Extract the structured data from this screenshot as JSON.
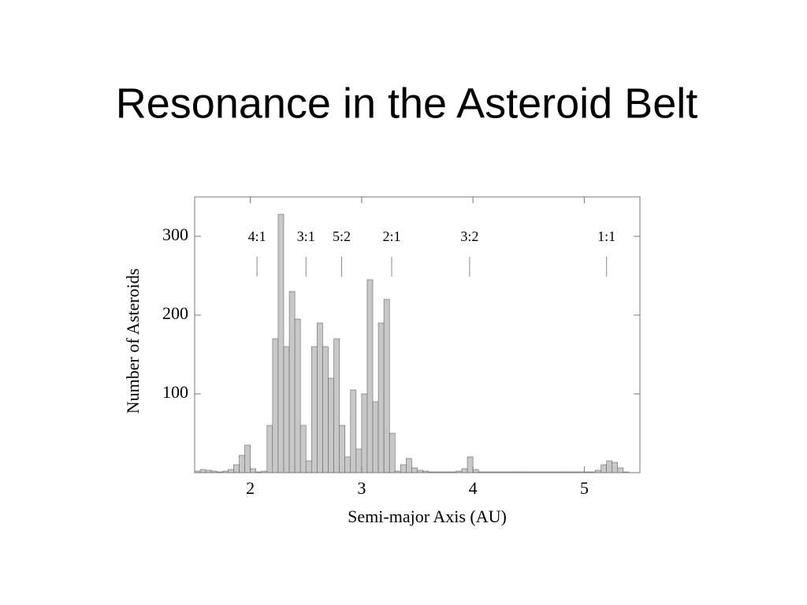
{
  "chart_data": {
    "type": "histogram",
    "title": "Resonance in the Asteroid Belt",
    "x_label": "Semi-major Axis (AU)",
    "y_label": "Number of Asteroids",
    "color": "#c8c8c8",
    "xlim": [
      1.5,
      5.5
    ],
    "xticks": [
      2,
      3,
      4,
      5
    ],
    "ylim": [
      0,
      350
    ],
    "yticks": [
      100,
      200,
      300
    ],
    "bins": [
      1.5,
      1.55,
      1.6,
      1.65,
      1.7,
      1.75,
      1.8,
      1.85,
      1.9,
      1.95,
      2.0,
      2.05,
      2.1,
      2.15,
      2.2,
      2.25,
      2.3,
      2.35,
      2.4,
      2.45,
      2.5,
      2.55,
      2.6,
      2.65,
      2.7,
      2.75,
      2.8,
      2.85,
      2.9,
      2.95,
      3.0,
      3.05,
      3.1,
      3.15,
      3.2,
      3.25,
      3.3,
      3.35,
      3.4,
      3.45,
      3.5,
      3.55,
      3.6,
      3.65,
      3.7,
      3.75,
      3.8,
      3.85,
      3.9,
      3.95,
      4.0,
      4.05,
      4.1,
      4.15,
      4.2,
      4.25,
      4.3,
      4.35,
      4.4,
      4.45,
      4.5,
      4.55,
      4.6,
      4.65,
      4.7,
      4.75,
      4.8,
      4.85,
      4.9,
      4.95,
      5.0,
      5.05,
      5.1,
      5.15,
      5.2,
      5.25,
      5.3,
      5.35,
      5.4,
      5.45,
      5.5
    ],
    "counts": [
      2,
      4,
      3,
      2,
      1,
      2,
      4,
      10,
      22,
      35,
      5,
      1,
      2,
      60,
      170,
      328,
      160,
      230,
      195,
      60,
      15,
      160,
      190,
      160,
      120,
      170,
      60,
      20,
      105,
      30,
      100,
      245,
      90,
      190,
      220,
      50,
      2,
      10,
      18,
      6,
      3,
      2,
      1,
      1,
      1,
      1,
      1,
      2,
      5,
      20,
      4,
      1,
      1,
      1,
      1,
      1,
      1,
      1,
      1,
      1,
      1,
      1,
      1,
      1,
      1,
      1,
      1,
      1,
      1,
      1,
      1,
      1,
      3,
      10,
      15,
      13,
      6,
      1,
      0,
      0
    ],
    "annotations": [
      {
        "label": "4:1",
        "x": 2.06
      },
      {
        "label": "3:1",
        "x": 2.5
      },
      {
        "label": "5:2",
        "x": 2.82
      },
      {
        "label": "2:1",
        "x": 3.27
      },
      {
        "label": "3:2",
        "x": 3.97
      },
      {
        "label": "1:1",
        "x": 5.2
      }
    ]
  }
}
